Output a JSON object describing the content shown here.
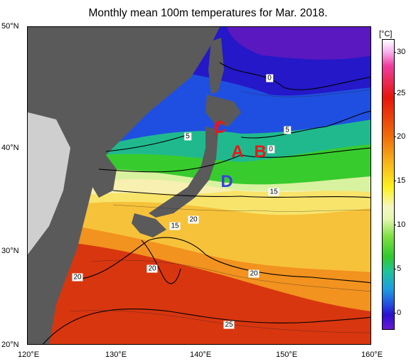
{
  "title": "Monthly mean 100m temperatures for Mar. 2018.",
  "lat_ticks": [
    {
      "id": "50",
      "label": "50°N"
    },
    {
      "id": "40",
      "label": "40°N"
    },
    {
      "id": "30",
      "label": "30°N"
    },
    {
      "id": "20",
      "label": "20°N"
    }
  ],
  "lon_ticks": [
    {
      "id": "120",
      "label": "120°E"
    },
    {
      "id": "130",
      "label": "130°E"
    },
    {
      "id": "140",
      "label": "140°E"
    },
    {
      "id": "150",
      "label": "150°E"
    },
    {
      "id": "160",
      "label": "160°E"
    }
  ],
  "colorbar": {
    "unit": "[°C]",
    "ticks": [
      "30",
      "25",
      "20",
      "15",
      "10",
      "5",
      "0"
    ]
  },
  "section_labels": [
    {
      "id": "A",
      "text": "A",
      "color": "#e81818"
    },
    {
      "id": "B",
      "text": "B",
      "color": "#e81818"
    },
    {
      "id": "C",
      "text": "C",
      "color": "#e81818"
    },
    {
      "id": "D",
      "text": "D",
      "color": "#3a44d8"
    }
  ],
  "contour_labels": [
    "0",
    "5",
    "5",
    "0",
    "15",
    "20",
    "15",
    "20",
    "20",
    "20",
    "25"
  ],
  "colors": {
    "land": "#5a5a5a",
    "land_light": "#cfcfcf",
    "cold": "#1a2fd8",
    "green": "#36cc2e",
    "warm_yellow": "#f8e25a",
    "orange": "#f09a24",
    "red": "#e23412"
  }
}
